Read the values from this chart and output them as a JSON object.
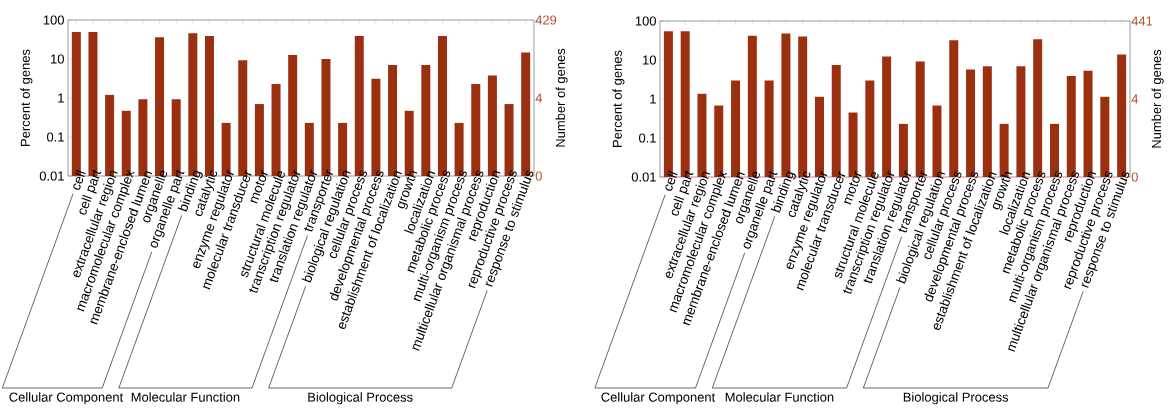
{
  "chart_data": [
    {
      "type": "bar",
      "categories": [
        "cell",
        "cell part",
        "extracellular region",
        "macromolecular complex",
        "membrane-enclosed lumen",
        "organelle",
        "organelle part",
        "binding",
        "catalytic",
        "enzyme regulator",
        "molecular transducer",
        "motor",
        "structural molecule",
        "transcription regulator",
        "translation regulator",
        "transporter",
        "biological regulation",
        "cellular process",
        "developmental process",
        "establishment of localization",
        "growth",
        "localization",
        "metabolic process",
        "multi-organism process",
        "multicellular organismal process",
        "reproduction",
        "reproductive process",
        "response to stimulus"
      ],
      "values": [
        49,
        49,
        1.2,
        0.47,
        0.93,
        36,
        0.93,
        46,
        39,
        0.23,
        9.3,
        0.7,
        2.3,
        12.6,
        0.23,
        10,
        0.23,
        39,
        3.1,
        7,
        0.47,
        7,
        39,
        0.23,
        2.3,
        3.8,
        0.7,
        14.7
      ],
      "color": "#9a3010",
      "ylabel": "Percent of genes",
      "y2label": "Number of genes",
      "ylim": [
        0.01,
        100
      ],
      "yticks": [
        0.01,
        0.1,
        1,
        10,
        100
      ],
      "log": true,
      "annotations": [
        "Cellular Component",
        "Molecular Function",
        "Biological Process",
        "429",
        "4",
        "0"
      ]
    },
    {
      "type": "bar",
      "categories": [
        "cell",
        "cell part",
        "extracellular region",
        "macromolecular complex",
        "membrane-enclosed lumen",
        "organelle",
        "organelle part",
        "binding",
        "catalytic",
        "enzyme regulator",
        "molecular transducer",
        "motor",
        "structural molecule",
        "transcription regulator",
        "translation regulator",
        "transporter",
        "biological regulation",
        "cellular process",
        "developmental process",
        "establishment of localization",
        "growth",
        "localization",
        "metabolic process",
        "multi-organism process",
        "multicellular organismal process",
        "reproduction",
        "reproductive process",
        "response to stimulus"
      ],
      "values": [
        55,
        55,
        1.36,
        0.68,
        3.0,
        42,
        3.0,
        48,
        40,
        1.14,
        7.5,
        0.45,
        3.0,
        12.3,
        0.23,
        9.1,
        0.68,
        32,
        5.7,
        6.9,
        0.23,
        6.9,
        34,
        0.23,
        3.9,
        5.3,
        1.14,
        13.8
      ],
      "color": "#9a3010",
      "ylabel": "Percent of genes",
      "y2label": "Number of genes",
      "ylim": [
        0.01,
        100
      ],
      "yticks": [
        0.01,
        0.1,
        1,
        10,
        100
      ],
      "log": true,
      "annotations": [
        "Cellular Component",
        "Molecular Function",
        "Biological Process",
        "441",
        "4",
        "0"
      ]
    }
  ]
}
